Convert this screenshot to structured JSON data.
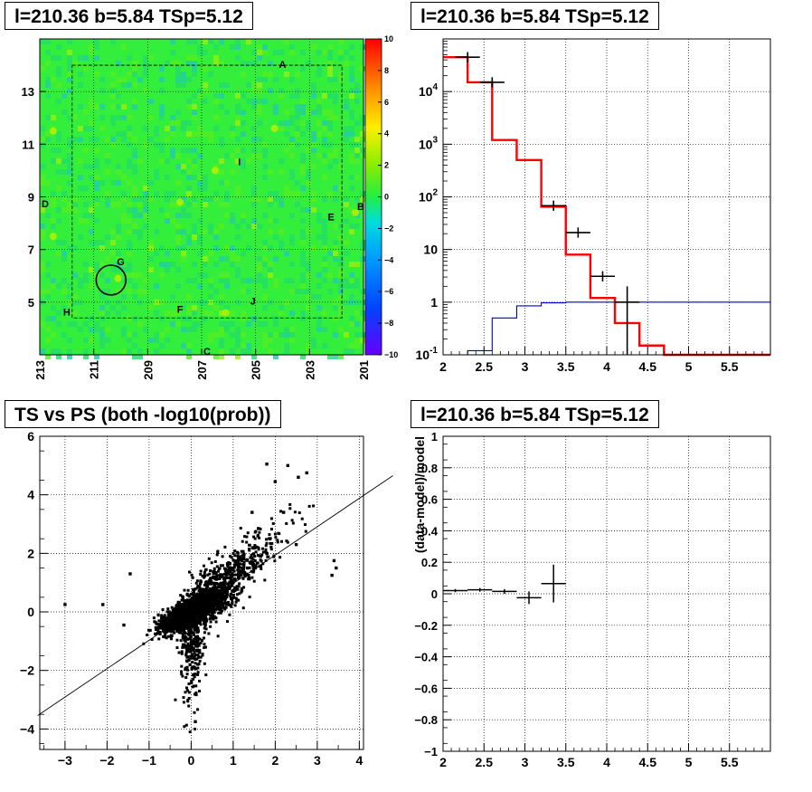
{
  "panels": {
    "tl_title": "l=210.36 b=5.84 TSp=5.12",
    "tr_title": "l=210.36 b=5.84 TSp=5.12",
    "bl_title": "TS vs PS (both -log10(prob))",
    "br_title": "l=210.36 b=5.84 TSp=5.12"
  },
  "chart_data": [
    {
      "id": "skymap",
      "type": "heatmap",
      "title": "l=210.36 b=5.84 TSp=5.12",
      "xlim": [
        213,
        201
      ],
      "ylim": [
        3,
        15
      ],
      "xticks": [
        213,
        211,
        209,
        207,
        205,
        203,
        201
      ],
      "yticks": [
        5,
        7,
        9,
        11,
        13
      ],
      "colorbar": {
        "min": -10,
        "max": 10,
        "ticks": [
          -10,
          -8,
          -6,
          -4,
          -2,
          0,
          2,
          4,
          6,
          8,
          10
        ]
      },
      "source_labels": [
        {
          "label": "A",
          "l": 204.0,
          "b": 13.9
        },
        {
          "label": "B",
          "l": 201.1,
          "b": 8.5
        },
        {
          "label": "C",
          "l": 206.8,
          "b": 3.0
        },
        {
          "label": "D",
          "l": 212.8,
          "b": 8.6
        },
        {
          "label": "E",
          "l": 202.2,
          "b": 8.1
        },
        {
          "label": "F",
          "l": 207.8,
          "b": 4.6
        },
        {
          "label": "G",
          "l": 210.0,
          "b": 6.4
        },
        {
          "label": "H",
          "l": 212.0,
          "b": 4.5
        },
        {
          "label": "I",
          "l": 205.6,
          "b": 10.2
        },
        {
          "label": "J",
          "l": 205.1,
          "b": 4.9
        }
      ],
      "circle": {
        "l": 210.36,
        "b": 5.84,
        "r": 0.55
      }
    },
    {
      "id": "counts",
      "type": "line",
      "title": "l=210.36 b=5.84 TSp=5.12",
      "xlim": [
        2,
        6
      ],
      "ylim": [
        0.1,
        100000
      ],
      "log_y": true,
      "xticks": [
        "2",
        "2.5",
        "3",
        "3.5",
        "4",
        "4.5",
        "5",
        "5.5"
      ],
      "yticks": [
        "10^-1",
        "1",
        "10",
        "10^2",
        "10^3",
        "10^4"
      ],
      "bin_edges": [
        2.0,
        2.3,
        2.6,
        2.9,
        3.2,
        3.5,
        3.8,
        4.1,
        4.4,
        4.7,
        5.0,
        6.0
      ],
      "series": [
        {
          "color": "#ff0000",
          "values": [
            45000,
            15000,
            1200,
            500,
            65,
            8,
            1.2,
            0.4,
            0.15,
            0.1,
            0.1
          ]
        },
        {
          "color": "#0000cc",
          "values": [
            0.1,
            0.12,
            0.5,
            0.85,
            0.97,
            1.0,
            1.0,
            1.0,
            1.0,
            1.0,
            1.0
          ]
        }
      ],
      "data_points": [
        {
          "x": 2.3,
          "y": 45000
        },
        {
          "x": 2.6,
          "y": 15000
        },
        {
          "x": 3.35,
          "y": 68
        },
        {
          "x": 3.65,
          "y": 21
        },
        {
          "x": 3.95,
          "y": 3.1
        },
        {
          "x": 4.25,
          "y": 1.0
        }
      ]
    },
    {
      "id": "ts_vs_ps",
      "type": "scatter",
      "title": "TS vs PS (both -log10(prob))",
      "xlim": [
        -3.6,
        4.1
      ],
      "ylim": [
        -4.7,
        6
      ],
      "xticks": [
        "−3",
        "−2",
        "−1",
        "0",
        "1",
        "2",
        "3",
        "4"
      ],
      "yticks": [
        "−4",
        "−2",
        "0",
        "2",
        "4",
        "6"
      ],
      "line": {
        "slope": 0.97,
        "intercept": 0.0
      },
      "outliers": [
        {
          "x": -3.0,
          "y": 0.25
        },
        {
          "x": -2.1,
          "y": 0.25
        },
        {
          "x": -1.6,
          "y": -0.45
        },
        {
          "x": 1.8,
          "y": 5.05
        },
        {
          "x": 2.3,
          "y": 5.0
        },
        {
          "x": 2.55,
          "y": 4.6
        },
        {
          "x": 2.75,
          "y": 4.75
        },
        {
          "x": 2.0,
          "y": 4.45
        },
        {
          "x": 3.4,
          "y": 1.75
        },
        {
          "x": 3.45,
          "y": 1.5
        },
        {
          "x": 3.35,
          "y": 1.25
        },
        {
          "x": 2.5,
          "y": 2.3
        },
        {
          "x": 1.45,
          "y": 3.4
        },
        {
          "x": -1.45,
          "y": 1.3
        },
        {
          "x": 0.1,
          "y": -3.75
        },
        {
          "x": 1.6,
          "y": 2.85
        },
        {
          "x": 2.2,
          "y": 3.4
        }
      ]
    },
    {
      "id": "residuals",
      "type": "scatter",
      "title": "l=210.36 b=5.84 TSp=5.12",
      "ylabel": "(data-model)/model",
      "xlim": [
        2,
        6
      ],
      "ylim": [
        -1,
        1
      ],
      "xticks": [
        "2",
        "2.5",
        "3",
        "3.5",
        "4",
        "4.5",
        "5",
        "5.5"
      ],
      "yticks": [
        "−1",
        "−0.8",
        "−0.6",
        "−0.4",
        "−0.2",
        "0",
        "0.2",
        "0.4",
        "0.6",
        "0.8",
        "1"
      ],
      "points": [
        {
          "x": 2.15,
          "xerr": 0.15,
          "y": 0.02,
          "yerr": 0.01
        },
        {
          "x": 2.45,
          "xerr": 0.15,
          "y": 0.025,
          "yerr": 0.012
        },
        {
          "x": 2.75,
          "xerr": 0.15,
          "y": 0.015,
          "yerr": 0.015
        },
        {
          "x": 3.05,
          "xerr": 0.15,
          "y": -0.025,
          "yerr": 0.04
        },
        {
          "x": 3.35,
          "xerr": 0.15,
          "y": 0.065,
          "yerr": 0.12
        }
      ]
    }
  ]
}
